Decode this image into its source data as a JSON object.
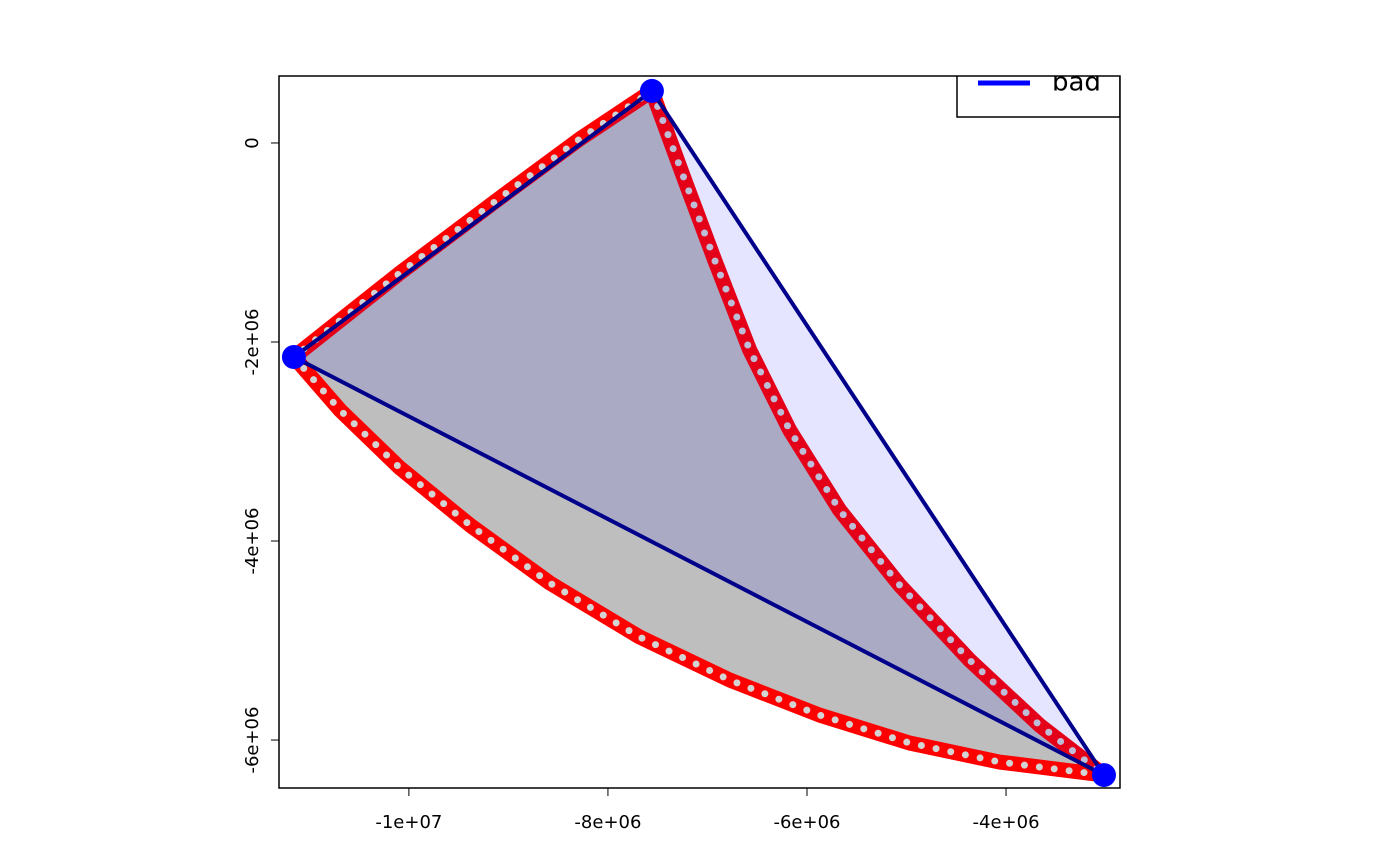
{
  "chart_data": {
    "type": "polygon",
    "xlim": [
      -11305000,
      -2855000
    ],
    "ylim": [
      -6482000,
      673000
    ],
    "xticks": [
      {
        "value": -10000000,
        "label": "-1e+07"
      },
      {
        "value": -8000000,
        "label": "-8e+06"
      },
      {
        "value": -6000000,
        "label": "-6e+06"
      },
      {
        "value": -4000000,
        "label": "-4e+06"
      }
    ],
    "yticks": [
      0,
      {
        "value": -2000000,
        "label": "-2e+06"
      },
      {
        "value": -4000000,
        "label": "-4e+06"
      },
      {
        "value": -6000000,
        "label": "-6e+06"
      }
    ],
    "legend_position": "topright",
    "polygons": [
      {
        "fill": "#bebebe",
        "color": "#ff0000",
        "dots": "#d3d3d3",
        "x": [
          -11155000,
          -10693000,
          -10090000,
          -9388000,
          -8584000,
          -7681000,
          -6777000,
          -5874000,
          -4970000,
          -4066000,
          -3016000,
          -3665000,
          -4367000,
          -5070000,
          -5673000,
          -6175000,
          -6576000,
          -6928000,
          -7229000,
          -7558000,
          -8283000,
          -9086000,
          -10090000
        ],
        "y": [
          -2151000,
          -2683000,
          -3266000,
          -3839000,
          -4422000,
          -4965000,
          -5397000,
          -5749000,
          -6030000,
          -6221000,
          -6352000,
          -5849000,
          -5196000,
          -4442000,
          -3688000,
          -2884000,
          -2080000,
          -1176000,
          -372000,
          523000,
          40000,
          -553000,
          -1307000
        ]
      },
      {
        "name": "bad",
        "fill": "rgba(0,0,255,0.1)",
        "color": "#00008b",
        "legend_color": "#0000ff",
        "marker_color": "#0000ff",
        "x": [
          -11155000,
          -7558000,
          -3016000
        ],
        "y": [
          -2151000,
          523000,
          -6352000
        ]
      }
    ]
  }
}
